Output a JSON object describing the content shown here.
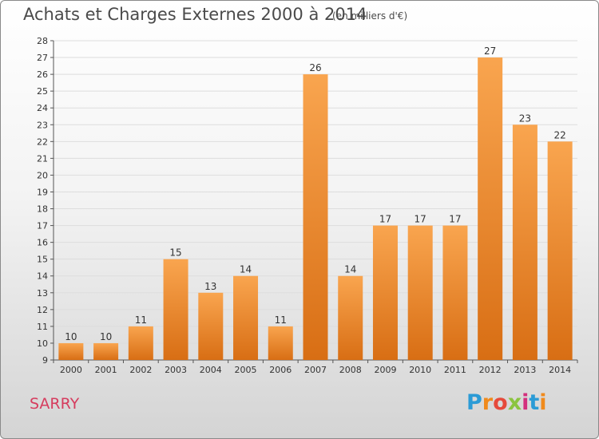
{
  "header": {
    "title": "Achats et Charges Externes 2000 à 2014",
    "unit_note": "(en milliers d'€)"
  },
  "footer": {
    "commune": "SARRY",
    "logo_text": "Proxiti"
  },
  "colors": {
    "bar_light": "#f9a54f",
    "bar_dark": "#d86e14",
    "grid": "#dddddd",
    "commune": "#d63c5e"
  },
  "chart_data": {
    "type": "bar",
    "title": "Achats et Charges Externes 2000 à 2014",
    "subtitle": "(en milliers d'€)",
    "xlabel": "",
    "ylabel": "",
    "categories": [
      "2000",
      "2001",
      "2002",
      "2003",
      "2004",
      "2005",
      "2006",
      "2007",
      "2008",
      "2009",
      "2010",
      "2011",
      "2012",
      "2013",
      "2014"
    ],
    "values": [
      10,
      10,
      11,
      15,
      13,
      14,
      11,
      26,
      14,
      17,
      17,
      17,
      27,
      23,
      22
    ],
    "ylim": [
      9,
      28
    ],
    "yticks": [
      9,
      10,
      11,
      12,
      13,
      14,
      15,
      16,
      17,
      18,
      19,
      20,
      21,
      22,
      23,
      24,
      25,
      26,
      27,
      28
    ],
    "grid": "horizontal",
    "data_labels": true
  }
}
